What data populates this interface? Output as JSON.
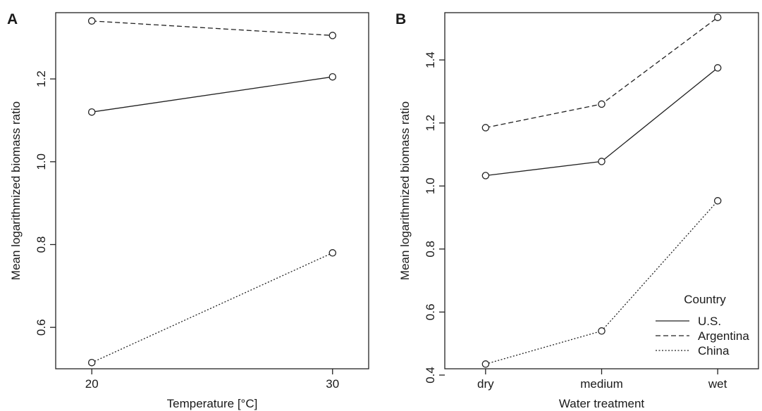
{
  "chart_data": [
    {
      "panel_label": "A",
      "type": "line",
      "xlabel": "Temperature [°C]",
      "ylabel": "Mean logarithmized biomass ratio",
      "x": [
        20,
        30
      ],
      "x_tick_labels": [
        "20",
        "30"
      ],
      "xlim": [
        18.5,
        31.5
      ],
      "ylim": [
        0.5,
        1.36
      ],
      "y_ticks": [
        0.6,
        0.8,
        1.0,
        1.2
      ],
      "y_tick_labels": [
        "0.6",
        "0.8",
        "1.0",
        "1.2"
      ],
      "series": [
        {
          "key": "us",
          "style": "solid",
          "values": [
            1.12,
            1.205
          ]
        },
        {
          "key": "argentina",
          "style": "dashed",
          "values": [
            1.34,
            1.305
          ]
        },
        {
          "key": "china",
          "style": "dotted",
          "values": [
            0.515,
            0.78
          ]
        }
      ]
    },
    {
      "panel_label": "B",
      "type": "line",
      "xlabel": "Water treatment",
      "ylabel": "Mean logarithmized biomass ratio",
      "categories": [
        "dry",
        "medium",
        "wet"
      ],
      "ylim": [
        0.42,
        1.55
      ],
      "y_ticks": [
        0.4,
        0.6,
        0.8,
        1.0,
        1.2,
        1.4
      ],
      "y_tick_labels": [
        "0.4",
        "0.6",
        "0.8",
        "1.0",
        "1.2",
        "1.4"
      ],
      "legend": {
        "title": "Country",
        "position": "bottom-right",
        "entries": [
          {
            "key": "us",
            "label": "U.S.",
            "style": "solid"
          },
          {
            "key": "argentina",
            "label": "Argentina",
            "style": "dashed"
          },
          {
            "key": "china",
            "label": "China",
            "style": "dotted"
          }
        ]
      },
      "series": [
        {
          "key": "us",
          "name": "U.S.",
          "style": "solid",
          "values": [
            1.033,
            1.078,
            1.375
          ]
        },
        {
          "key": "argentina",
          "name": "Argentina",
          "style": "dashed",
          "values": [
            1.185,
            1.26,
            1.535
          ]
        },
        {
          "key": "china",
          "name": "China",
          "style": "dotted",
          "values": [
            0.435,
            0.54,
            0.953
          ]
        }
      ]
    }
  ]
}
